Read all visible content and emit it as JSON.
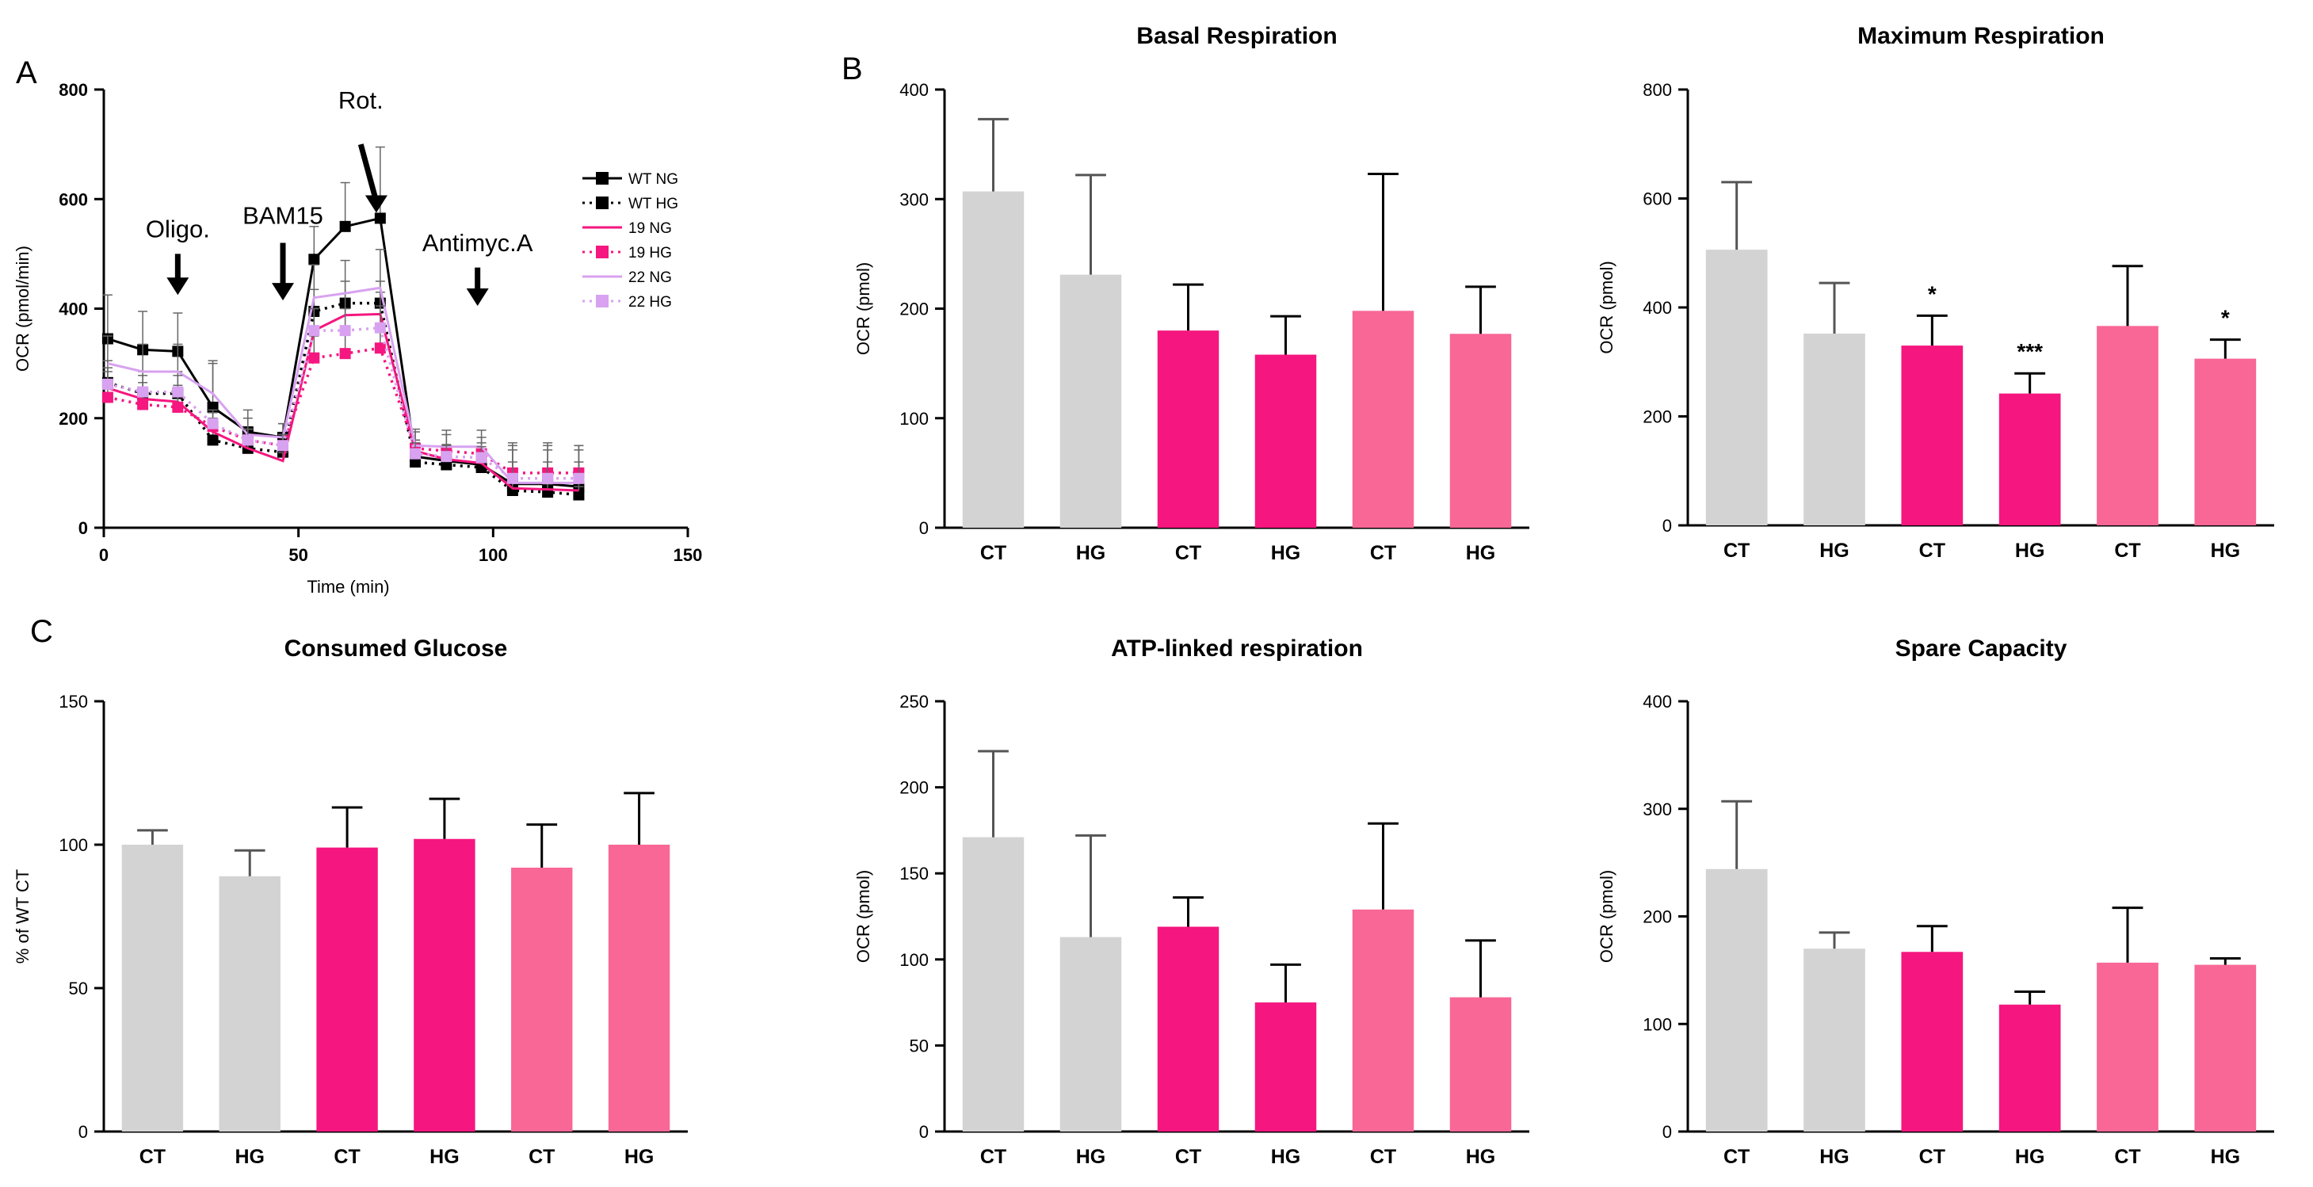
{
  "colors": {
    "grey": "#D3D3D3",
    "magenta": "#F5167F",
    "pink": "#F86796",
    "lavender": "#D8A2F0",
    "black": "#000000"
  },
  "chart_data": [
    {
      "id": "A",
      "panel_label": "A",
      "type": "line",
      "title": "",
      "xlabel": "Time (min)",
      "ylabel": "OCR (pmol/min)",
      "xlim": [
        0,
        150
      ],
      "ylim": [
        0,
        800
      ],
      "xticks": [
        "0",
        "50",
        "100",
        "150"
      ],
      "yticks": [
        "0",
        "200",
        "400",
        "600",
        "800"
      ],
      "x": [
        1,
        10,
        19,
        28,
        37,
        46,
        54,
        62,
        71,
        80,
        88,
        97,
        105,
        114,
        122
      ],
      "series": [
        {
          "name": "WT NG",
          "color": "#000000",
          "dash": "",
          "marker": "square",
          "values": [
            345,
            325,
            322,
            220,
            175,
            165,
            490,
            550,
            565,
            130,
            122,
            115,
            80,
            80,
            75
          ],
          "errors": [
            80,
            70,
            70,
            80,
            40,
            25,
            60,
            80,
            130,
            30,
            30,
            40,
            75,
            75,
            75
          ]
        },
        {
          "name": "WT HG",
          "color": "#000000",
          "dash": "dots",
          "marker": "square",
          "values": [
            265,
            245,
            245,
            160,
            145,
            138,
            395,
            410,
            410,
            120,
            115,
            110,
            68,
            65,
            60
          ],
          "errors": [
            40,
            40,
            40,
            30,
            25,
            20,
            40,
            40,
            40,
            20,
            20,
            20,
            15,
            15,
            15
          ]
        },
        {
          "name": "19 NG",
          "color": "#F5167F",
          "dash": "",
          "marker": "none",
          "values": [
            255,
            235,
            230,
            175,
            145,
            122,
            360,
            388,
            390,
            140,
            125,
            118,
            72,
            70,
            68
          ],
          "errors": [
            30,
            30,
            30,
            25,
            20,
            15,
            40,
            40,
            40,
            20,
            20,
            20,
            15,
            15,
            15
          ]
        },
        {
          "name": "19 HG",
          "color": "#F5167F",
          "dash": "dots",
          "marker": "square",
          "values": [
            238,
            225,
            220,
            185,
            160,
            150,
            310,
            318,
            328,
            145,
            140,
            135,
            100,
            100,
            100
          ],
          "errors": [
            30,
            30,
            30,
            25,
            20,
            20,
            40,
            40,
            40,
            30,
            30,
            30,
            50,
            50,
            50
          ]
        },
        {
          "name": "22 NG",
          "color": "#D8A2F0",
          "dash": "",
          "marker": "none",
          "values": [
            300,
            285,
            285,
            245,
            170,
            165,
            420,
            428,
            438,
            150,
            148,
            148,
            82,
            82,
            82
          ],
          "errors": [
            50,
            50,
            50,
            60,
            30,
            25,
            60,
            60,
            70,
            30,
            30,
            30,
            60,
            60,
            60
          ]
        },
        {
          "name": "22 HG",
          "color": "#D8A2F0",
          "dash": "dots",
          "marker": "square",
          "values": [
            262,
            248,
            248,
            190,
            160,
            150,
            360,
            360,
            365,
            135,
            130,
            128,
            90,
            90,
            90
          ],
          "errors": [
            30,
            30,
            30,
            25,
            20,
            20,
            40,
            40,
            40,
            20,
            20,
            20,
            30,
            30,
            30
          ]
        }
      ],
      "annotations": [
        {
          "label": "Oligo.",
          "x": 19,
          "head": 425,
          "tail": 500,
          "label_y": 530
        },
        {
          "label": "BAM15",
          "x": 46,
          "head": 415,
          "tail": 520,
          "label_y": 555
        },
        {
          "label": "Rot.",
          "x": 70,
          "head": 575,
          "tail": 700,
          "label_y": 765,
          "x_tail": 66
        },
        {
          "label": "Antimyc.A",
          "x": 96,
          "head": 405,
          "tail": 475,
          "label_y": 505
        }
      ]
    },
    {
      "id": "B1",
      "panel_label": "B",
      "type": "bar",
      "title": "Basal Respiration",
      "xlabel": "",
      "ylabel": "OCR (pmol)",
      "ylim": [
        0,
        400
      ],
      "yticks": [
        "0",
        "100",
        "200",
        "300",
        "400"
      ],
      "categories": [
        "CT",
        "HG",
        "CT",
        "HG",
        "CT",
        "HG"
      ],
      "values": [
        307,
        231,
        180,
        158,
        198,
        177
      ],
      "errors": [
        66,
        91,
        42,
        35,
        125,
        43
      ],
      "bar_colors": [
        "#D3D3D3",
        "#D3D3D3",
        "#F5167F",
        "#F5167F",
        "#F86796",
        "#F86796"
      ],
      "significance": [
        "",
        "",
        "",
        "",
        "",
        ""
      ]
    },
    {
      "id": "B2",
      "panel_label": "",
      "type": "bar",
      "title": "Maximum Respiration",
      "xlabel": "",
      "ylabel": "OCR (pmol)",
      "ylim": [
        0,
        800
      ],
      "yticks": [
        "0",
        "200",
        "400",
        "600",
        "800"
      ],
      "categories": [
        "CT",
        "HG",
        "CT",
        "HG",
        "CT",
        "HG"
      ],
      "values": [
        506,
        352,
        330,
        242,
        366,
        306
      ],
      "errors": [
        124,
        93,
        55,
        37,
        110,
        35
      ],
      "bar_colors": [
        "#D3D3D3",
        "#D3D3D3",
        "#F5167F",
        "#F5167F",
        "#F86796",
        "#F86796"
      ],
      "significance": [
        "",
        "",
        "*",
        "***",
        "",
        "*"
      ]
    },
    {
      "id": "C1",
      "panel_label": "C",
      "type": "bar",
      "title": "Consumed Glucose",
      "xlabel": "",
      "ylabel": "% of WT CT",
      "ylim": [
        0,
        150
      ],
      "yticks": [
        "0",
        "50",
        "100",
        "150"
      ],
      "categories": [
        "CT",
        "HG",
        "CT",
        "HG",
        "CT",
        "HG"
      ],
      "values": [
        100,
        89,
        99,
        102,
        92,
        100
      ],
      "errors": [
        5,
        9,
        14,
        14,
        15,
        18
      ],
      "bar_colors": [
        "#D3D3D3",
        "#D3D3D3",
        "#F5167F",
        "#F5167F",
        "#F86796",
        "#F86796"
      ],
      "significance": [
        "",
        "",
        "",
        "",
        "",
        ""
      ]
    },
    {
      "id": "C2",
      "panel_label": "",
      "type": "bar",
      "title": "ATP-linked respiration",
      "xlabel": "",
      "ylabel": "OCR (pmol)",
      "ylim": [
        0,
        250
      ],
      "yticks": [
        "0",
        "50",
        "100",
        "150",
        "200",
        "250"
      ],
      "categories": [
        "CT",
        "HG",
        "CT",
        "HG",
        "CT",
        "HG"
      ],
      "values": [
        171,
        113,
        119,
        75,
        129,
        78
      ],
      "errors": [
        50,
        59,
        17,
        22,
        50,
        33
      ],
      "bar_colors": [
        "#D3D3D3",
        "#D3D3D3",
        "#F5167F",
        "#F5167F",
        "#F86796",
        "#F86796"
      ],
      "significance": [
        "",
        "",
        "",
        "",
        "",
        ""
      ]
    },
    {
      "id": "C3",
      "panel_label": "",
      "type": "bar",
      "title": "Spare Capacity",
      "xlabel": "",
      "ylabel": "OCR (pmol)",
      "ylim": [
        0,
        400
      ],
      "yticks": [
        "0",
        "100",
        "200",
        "300",
        "400"
      ],
      "categories": [
        "CT",
        "HG",
        "CT",
        "HG",
        "CT",
        "HG"
      ],
      "values": [
        244,
        170,
        167,
        118,
        157,
        155
      ],
      "errors": [
        63,
        15,
        24,
        12,
        51,
        6
      ],
      "bar_colors": [
        "#D3D3D3",
        "#D3D3D3",
        "#F5167F",
        "#F5167F",
        "#F86796",
        "#F86796"
      ],
      "significance": [
        "",
        "",
        "",
        "",
        "",
        ""
      ]
    }
  ]
}
